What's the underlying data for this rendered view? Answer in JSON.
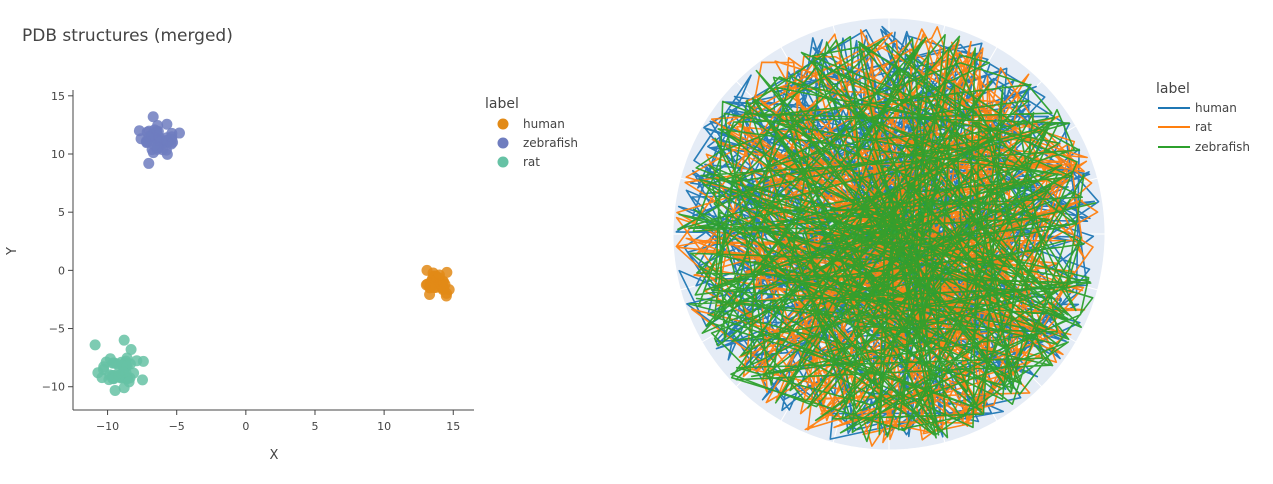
{
  "colors": {
    "human": "#e28a16",
    "zebrafish": "#6f7dbf",
    "rat": "#66c2a5",
    "polar_human": "#1f77b4",
    "polar_rat": "#ff7f0e",
    "polar_zebrafish": "#2ca02c",
    "polar_bg": "#e5ecf6",
    "grid": "#ffffff",
    "axis": "#444444"
  },
  "chart_data": [
    {
      "type": "scatter",
      "title": "PDB structures (merged)",
      "xlabel": "X",
      "ylabel": "Y",
      "xlim": [
        -12.5,
        16.5
      ],
      "ylim": [
        -12,
        15.5
      ],
      "xticks": [
        -10,
        -5,
        0,
        5,
        10,
        15
      ],
      "yticks": [
        -10,
        -5,
        0,
        5,
        10,
        15
      ],
      "xtick_labels": [
        "−10",
        "−5",
        "0",
        "5",
        "10",
        "15"
      ],
      "ytick_labels": [
        "−10",
        "−5",
        "0",
        "5",
        "10",
        "15"
      ],
      "legend": {
        "title": "label",
        "placement": "right"
      },
      "series": [
        {
          "name": "human",
          "cluster": {
            "cx": 13.8,
            "cy": -1.1,
            "spread": 0.45,
            "n": 30
          },
          "x": [
            13.1,
            13.3,
            14.4,
            14.5,
            14.0
          ],
          "y": [
            0.0,
            -1.5,
            -1.2,
            -2.2,
            -0.4
          ]
        },
        {
          "name": "zebrafish",
          "cluster": {
            "cx": -6.3,
            "cy": 11.2,
            "spread": 0.6,
            "n": 40
          },
          "x": [
            -6.7,
            -7.7,
            -4.8,
            -5.3,
            -7.0
          ],
          "y": [
            13.2,
            12.0,
            11.8,
            11.0,
            11.5
          ]
        },
        {
          "name": "rat",
          "cluster": {
            "cx": -9.0,
            "cy": -8.8,
            "spread": 0.7,
            "n": 45
          },
          "x": [
            -10.9,
            -8.8,
            -8.3,
            -9.8,
            -10.7
          ],
          "y": [
            -6.4,
            -6.0,
            -6.8,
            -7.6,
            -8.8
          ]
        }
      ]
    },
    {
      "type": "line",
      "subtype": "polar",
      "radial_range": [
        0,
        1
      ],
      "angular_grid_step_deg": 15,
      "radial_grid_steps": [
        0.2,
        0.4,
        0.6,
        0.8
      ],
      "legend": {
        "title": "label",
        "placement": "right"
      },
      "series": [
        {
          "name": "human",
          "n_points": 360,
          "seed": 11
        },
        {
          "name": "rat",
          "n_points": 360,
          "seed": 23
        },
        {
          "name": "zebrafish",
          "n_points": 360,
          "seed": 37
        }
      ]
    }
  ]
}
